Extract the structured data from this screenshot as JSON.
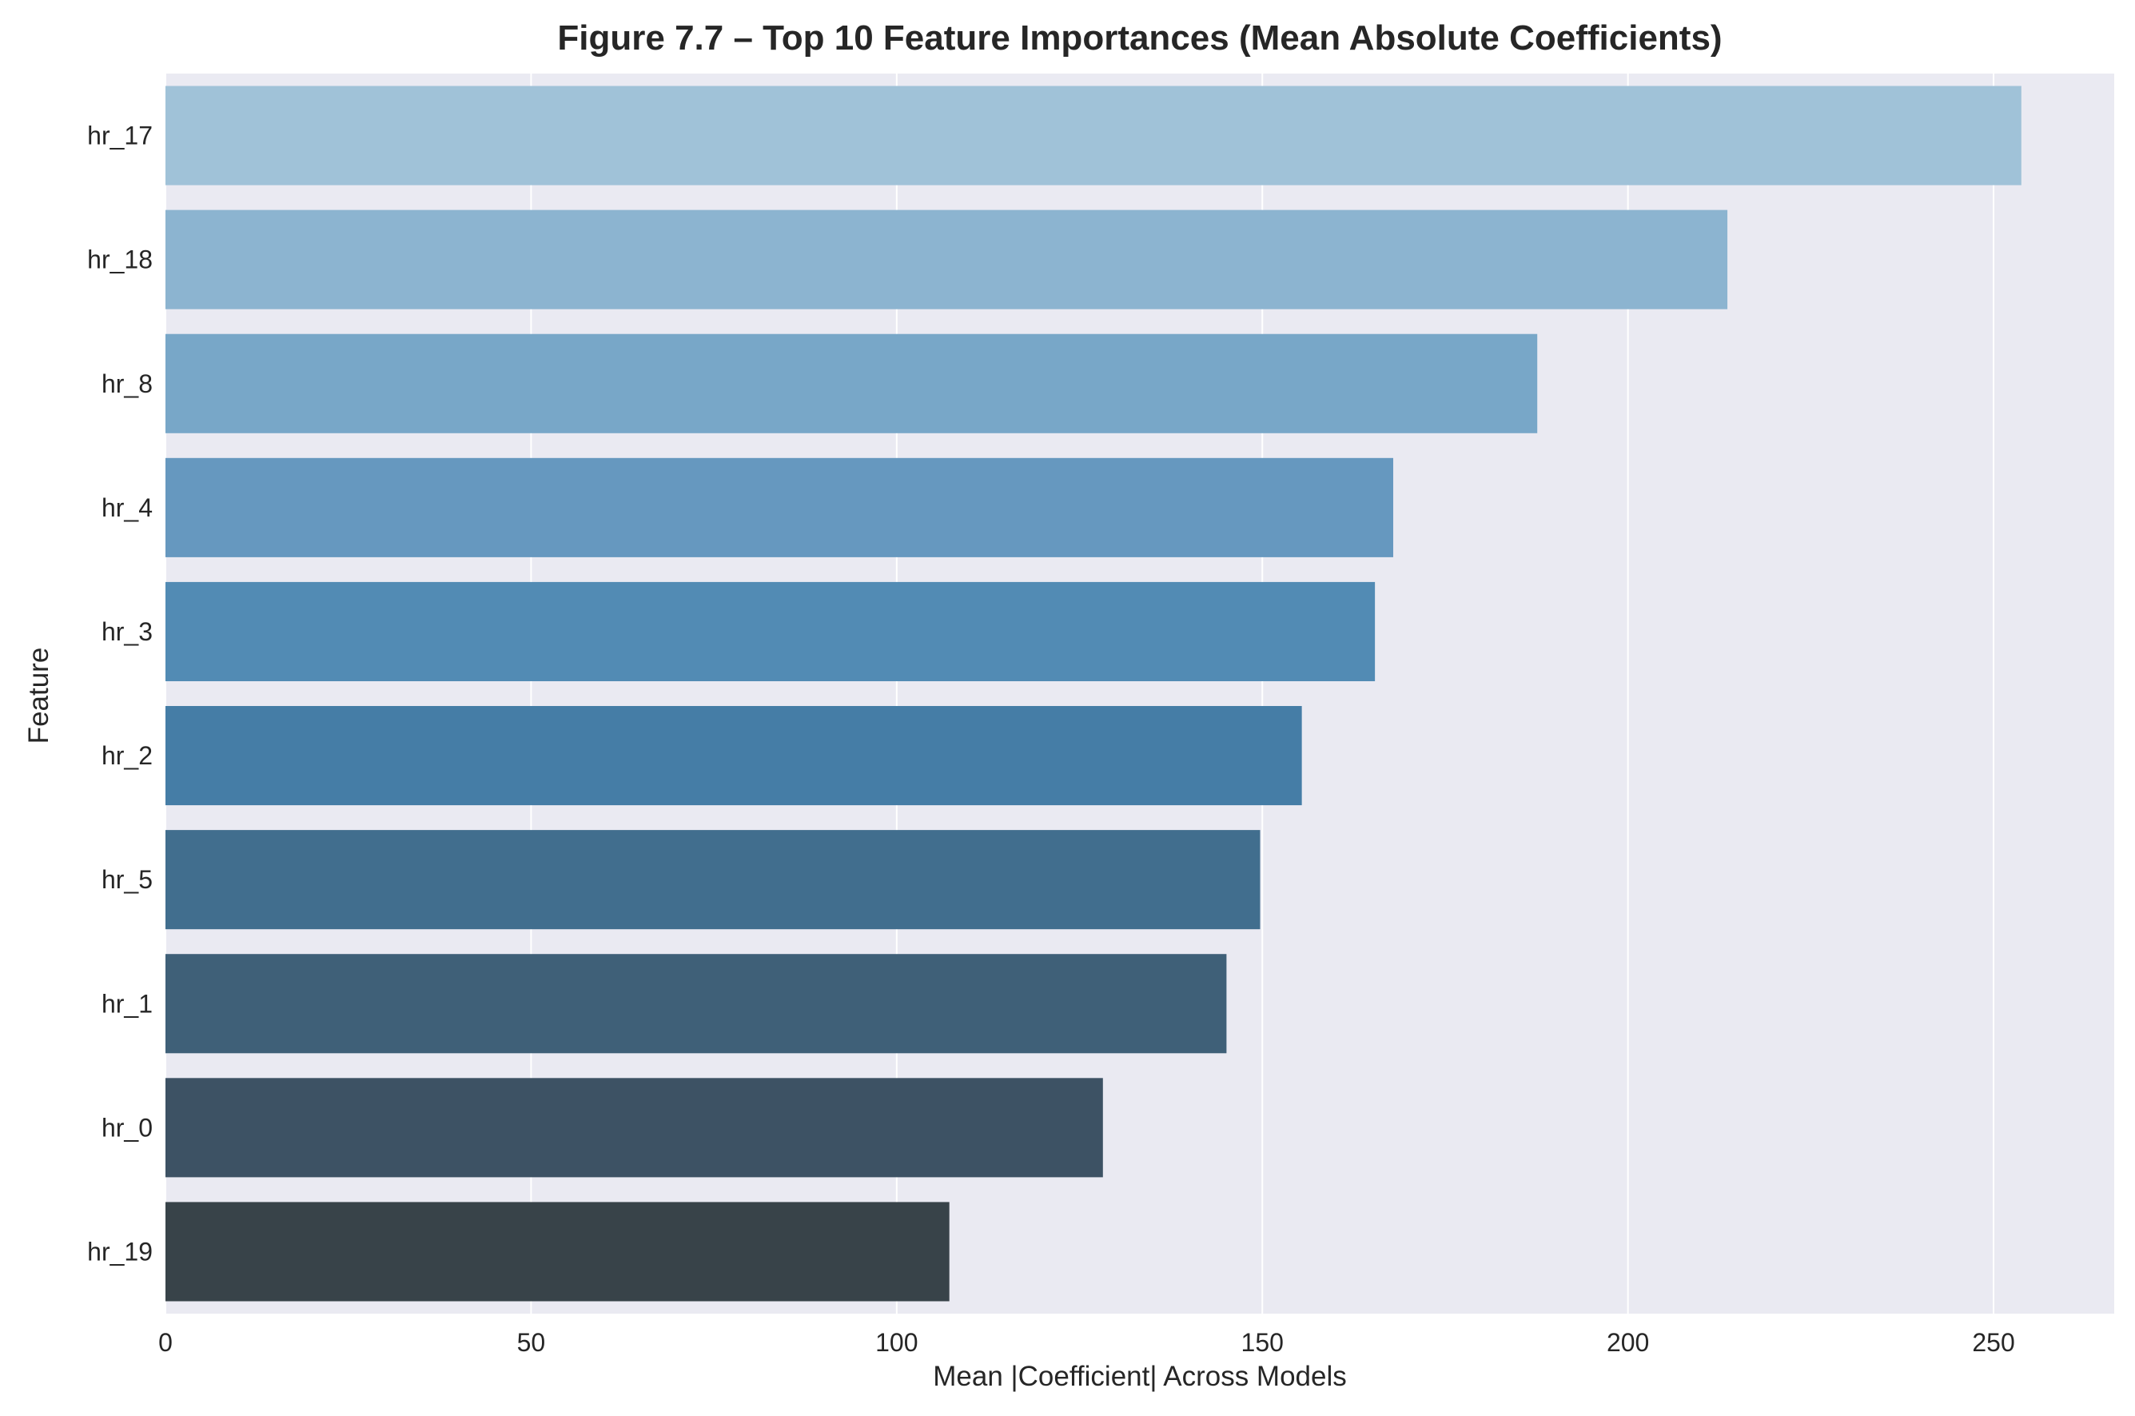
{
  "chart_data": {
    "type": "bar",
    "orientation": "horizontal",
    "title": "Figure 7.7 – Top 10 Feature Importances (Mean Absolute Coefficients)",
    "xlabel": "Mean |Coefficient| Across Models",
    "ylabel": "Feature",
    "categories": [
      "hr_17",
      "hr_18",
      "hr_8",
      "hr_4",
      "hr_3",
      "hr_2",
      "hr_5",
      "hr_1",
      "hr_0",
      "hr_19"
    ],
    "values": [
      253.8,
      213.6,
      187.6,
      167.9,
      165.4,
      155.4,
      149.7,
      145.1,
      128.2,
      107.2
    ],
    "colors": [
      "#a0c2d8",
      "#8cb4d0",
      "#78a7c8",
      "#6698bf",
      "#528bb4",
      "#457da6",
      "#416e8e",
      "#3f6078",
      "#3d5264",
      "#384349"
    ],
    "xlim": [
      0,
      266.5
    ],
    "xticks": [
      "0",
      "50",
      "100",
      "150",
      "200",
      "250"
    ],
    "grid": true,
    "background": "#eaeaf2",
    "gridColor": "#ffffff"
  }
}
